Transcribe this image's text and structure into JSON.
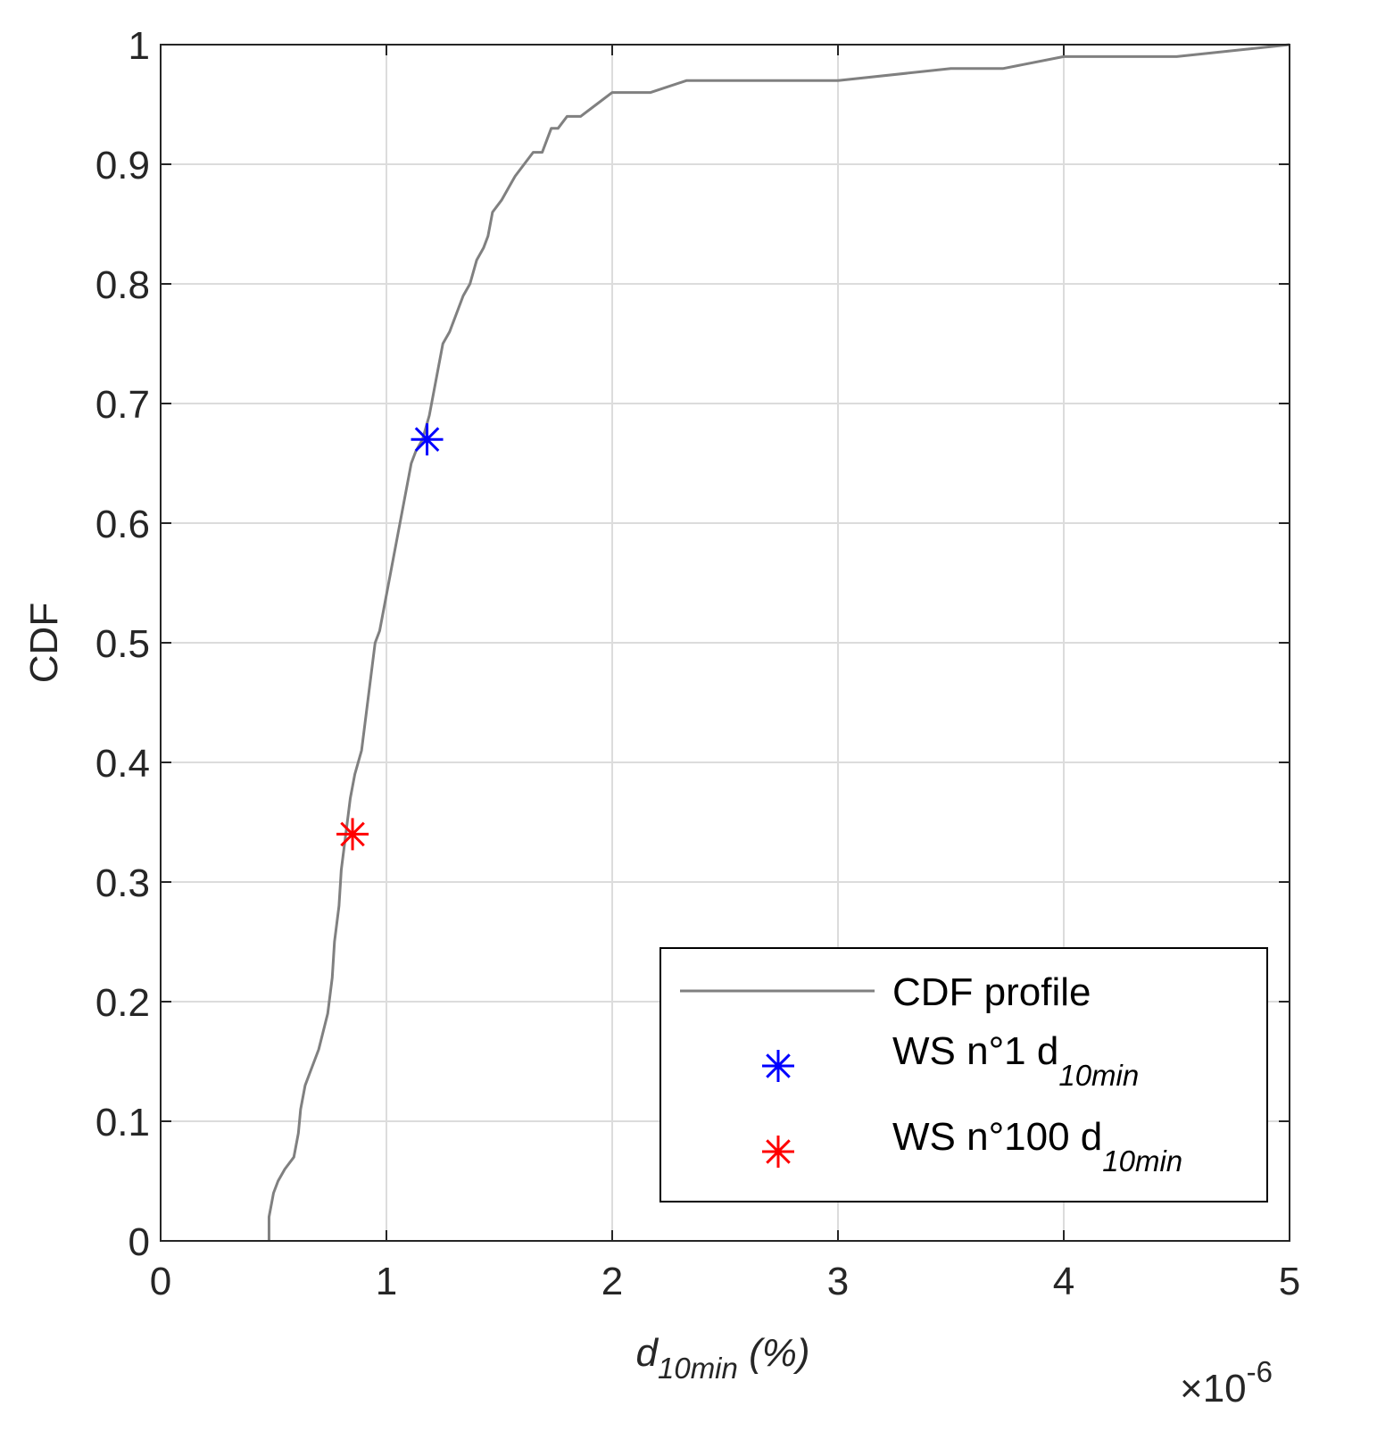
{
  "chart_data": {
    "type": "line",
    "title": "",
    "xlabel": {
      "main": "d",
      "sub": "10min",
      "suffix": " (%)"
    },
    "ylabel": "CDF",
    "xlim": [
      0,
      5
    ],
    "ylim": [
      0,
      1
    ],
    "x_scale_factor": {
      "base": "×10",
      "exponent": "-6"
    },
    "x_ticks": [
      0,
      1,
      2,
      3,
      4,
      5
    ],
    "x_tick_labels": [
      "0",
      "1",
      "2",
      "3",
      "4",
      "5"
    ],
    "y_ticks": [
      0,
      0.1,
      0.2,
      0.3,
      0.4,
      0.5,
      0.6,
      0.7,
      0.8,
      0.9,
      1
    ],
    "y_tick_labels": [
      "0",
      "0.1",
      "0.2",
      "0.3",
      "0.4",
      "0.5",
      "0.6",
      "0.7",
      "0.8",
      "0.9",
      "1"
    ],
    "grid": true,
    "legend_position": "bottom-right",
    "series": [
      {
        "name": "CDF profile",
        "kind": "line",
        "color": "#808080",
        "x": [
          0.48,
          0.48,
          0.5,
          0.52,
          0.55,
          0.59,
          0.61,
          0.62,
          0.64,
          0.66,
          0.7,
          0.74,
          0.76,
          0.77,
          0.79,
          0.8,
          0.82,
          0.84,
          0.86,
          0.89,
          0.91,
          0.93,
          0.95,
          0.97,
          0.99,
          1.02,
          1.05,
          1.07,
          1.09,
          1.11,
          1.13,
          1.16,
          1.19,
          1.21,
          1.23,
          1.25,
          1.28,
          1.3,
          1.34,
          1.37,
          1.4,
          1.43,
          1.45,
          1.47,
          1.51,
          1.54,
          1.57,
          1.61,
          1.65,
          1.69,
          1.71,
          1.73,
          1.76,
          1.8,
          1.86,
          1.93,
          2.0,
          2.1,
          2.17,
          2.33,
          3.0,
          3.5,
          3.7,
          3.73,
          4.0,
          4.5,
          5.0
        ],
        "y": [
          0.0,
          0.02,
          0.04,
          0.05,
          0.06,
          0.07,
          0.09,
          0.11,
          0.13,
          0.14,
          0.16,
          0.19,
          0.22,
          0.25,
          0.28,
          0.31,
          0.34,
          0.37,
          0.39,
          0.41,
          0.44,
          0.47,
          0.5,
          0.51,
          0.53,
          0.56,
          0.59,
          0.61,
          0.63,
          0.65,
          0.66,
          0.67,
          0.69,
          0.71,
          0.73,
          0.75,
          0.76,
          0.77,
          0.79,
          0.8,
          0.82,
          0.83,
          0.84,
          0.86,
          0.87,
          0.88,
          0.89,
          0.9,
          0.91,
          0.91,
          0.92,
          0.93,
          0.93,
          0.94,
          0.94,
          0.95,
          0.96,
          0.96,
          0.96,
          0.97,
          0.97,
          0.98,
          0.98,
          0.98,
          0.99,
          0.99,
          1.0
        ]
      },
      {
        "name": "WS n°1 d",
        "name_sub": "10min",
        "kind": "marker",
        "color": "#0000ff",
        "x": [
          1.18
        ],
        "y": [
          0.67
        ]
      },
      {
        "name": "WS n°100 d",
        "name_sub": "10min",
        "kind": "marker",
        "color": "#ff0000",
        "x": [
          0.85
        ],
        "y": [
          0.34
        ]
      }
    ]
  }
}
